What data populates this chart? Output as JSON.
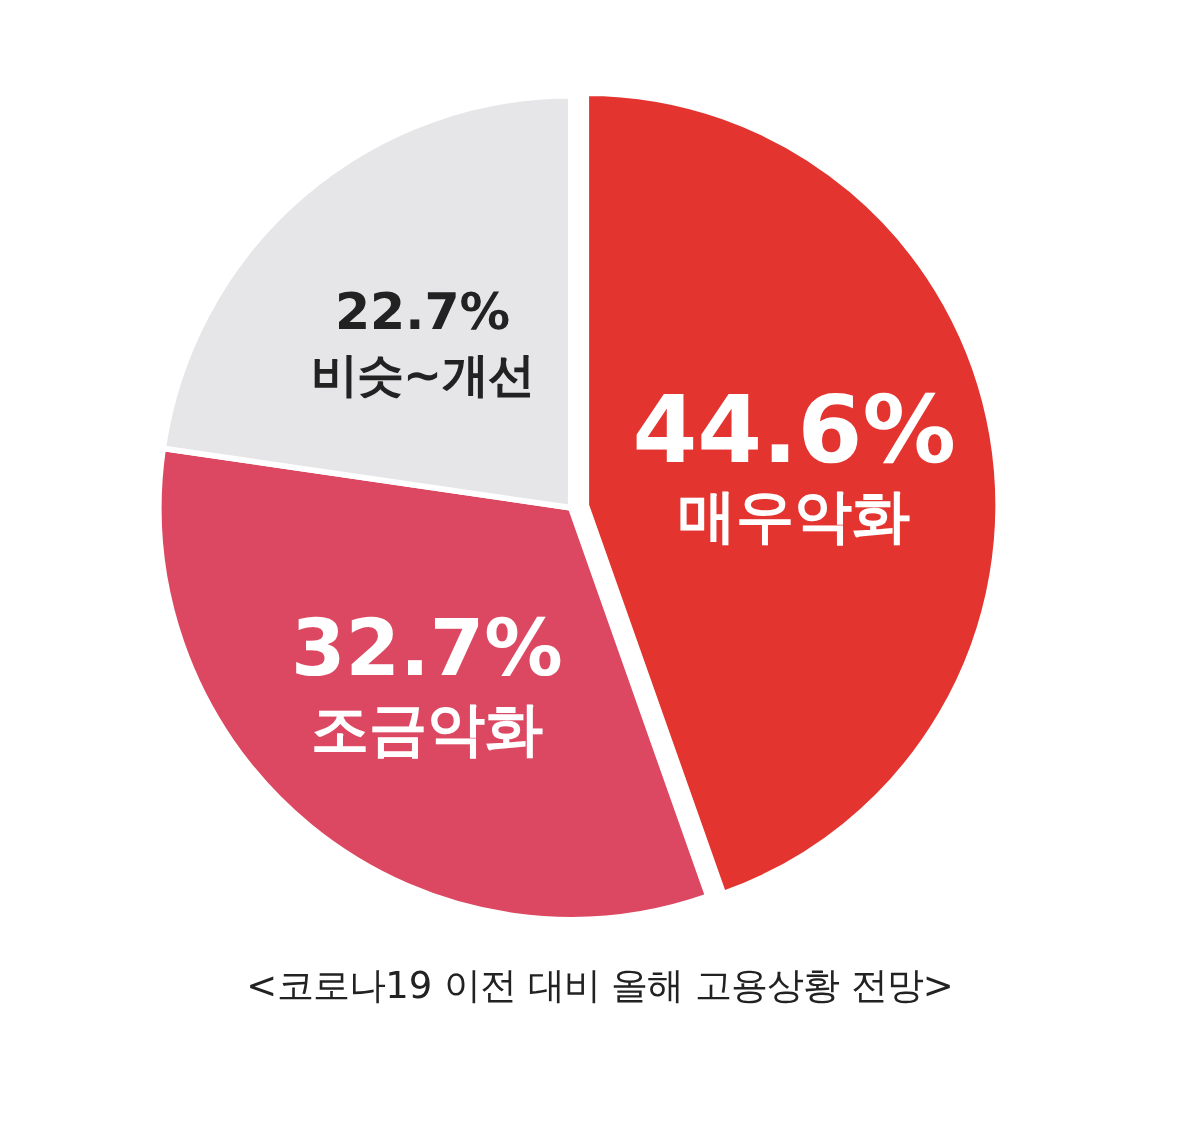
{
  "chart_data": {
    "type": "pie",
    "title": "<코로나19 이전 대비 올해 고용상황 전망>",
    "categories": [
      "매우악화",
      "조금악화",
      "비슷~개선"
    ],
    "values": [
      44.6,
      32.7,
      22.7
    ],
    "colors": [
      "#e3342f",
      "#dc4862",
      "#e6e6e8"
    ],
    "value_labels": [
      "44.6%",
      "32.7%",
      "22.7%"
    ]
  }
}
